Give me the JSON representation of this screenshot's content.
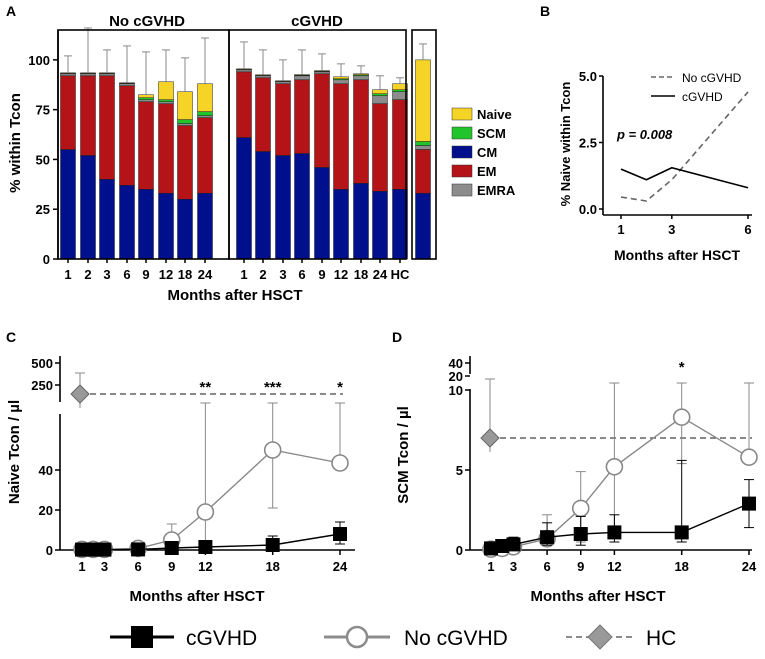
{
  "chart_data": [
    {
      "panel": "A",
      "type": "bar",
      "stacked": true,
      "ylabel": "% within Tcon",
      "xlabel": "Months after HSCT",
      "ylim": [
        0,
        115
      ],
      "yticks": [
        "0",
        "25",
        "50",
        "75",
        "100"
      ],
      "groups": [
        {
          "title": "No cGVHD",
          "categories": [
            "1",
            "2",
            "3",
            "6",
            "9",
            "12",
            "18",
            "24"
          ]
        },
        {
          "title": "cGVHD",
          "categories": [
            "1",
            "2",
            "3",
            "6",
            "9",
            "12",
            "18",
            "24"
          ]
        },
        {
          "title": "",
          "categories": [
            "HC"
          ]
        }
      ],
      "legend": [
        "Naive",
        "SCM",
        "CM",
        "EM",
        "EMRA"
      ],
      "colors": {
        "Naive": "#f5d327",
        "SCM": "#22c42c",
        "CM": "#000f8c",
        "EM": "#b41317",
        "EMRA": "#8c8c8c"
      },
      "series": [
        {
          "name": "CM",
          "values": [
            55,
            52,
            40,
            37,
            35,
            33,
            30,
            33,
            61,
            54,
            52,
            53,
            46,
            35,
            38,
            34,
            35,
            33
          ]
        },
        {
          "name": "EM",
          "values": [
            37,
            40,
            52,
            50,
            44,
            45,
            37,
            38,
            33,
            37,
            36,
            37,
            47,
            53,
            52,
            44,
            45,
            22
          ]
        },
        {
          "name": "EMRA",
          "values": [
            1,
            1,
            1,
            1,
            1,
            1,
            1,
            1,
            1,
            1,
            1,
            2,
            1,
            2,
            2,
            4,
            4,
            2
          ]
        },
        {
          "name": "SCM",
          "values": [
            0.2,
            0.2,
            0.2,
            0.2,
            1,
            1,
            2,
            2,
            0.2,
            0.2,
            0.2,
            0.3,
            0.3,
            0.5,
            0.5,
            1,
            1,
            2
          ]
        },
        {
          "name": "Naive",
          "values": [
            0.3,
            0.3,
            0.3,
            0.3,
            1.5,
            9,
            14,
            14,
            0.3,
            0.3,
            0.3,
            0.3,
            0.3,
            1,
            0.5,
            2,
            3,
            41
          ]
        }
      ],
      "error_upper": [
        102,
        116,
        105,
        107,
        104,
        105,
        101,
        111,
        109,
        105,
        100,
        105,
        103,
        98,
        97,
        92,
        91,
        108
      ]
    },
    {
      "panel": "B",
      "type": "line",
      "ylabel": "% Naive within Tcon",
      "xlabel": "Months after HSCT",
      "ylim": [
        0,
        5
      ],
      "yticks": [
        "0.0",
        "2.5",
        "5.0"
      ],
      "xticks": [
        "1",
        "3",
        "6"
      ],
      "annotation": "p = 0.008",
      "series": [
        {
          "name": "No cGVHD",
          "style": "dashed",
          "x": [
            1,
            2,
            3,
            6
          ],
          "y": [
            0.45,
            0.3,
            1.1,
            4.4
          ]
        },
        {
          "name": "cGVHD",
          "style": "solid",
          "x": [
            1,
            2,
            3,
            6
          ],
          "y": [
            1.5,
            1.1,
            1.55,
            0.8
          ]
        }
      ]
    },
    {
      "panel": "C",
      "type": "line",
      "ylabel": "Naive Tcon / µl",
      "xlabel": "Months after HSCT",
      "yticks_lower": [
        "0",
        "20",
        "40"
      ],
      "yticks_upper": [
        "250",
        "500"
      ],
      "xticks": [
        "1",
        "3",
        "6",
        "9",
        "12",
        "18",
        "24"
      ],
      "hc_reference": {
        "name": "HC",
        "value": 200
      },
      "significance": [
        {
          "x": 12,
          "label": "**"
        },
        {
          "x": 18,
          "label": "***"
        },
        {
          "x": 24,
          "label": "*"
        }
      ],
      "series": [
        {
          "name": "No cGVHD",
          "x": [
            1,
            2,
            3,
            6,
            9,
            12,
            18,
            24
          ],
          "y": [
            0.3,
            0.3,
            0.3,
            0.8,
            5,
            19,
            50,
            43.5
          ],
          "err_hi": [
            0,
            0,
            0,
            0,
            13,
            "break",
            "break",
            "break"
          ],
          "err_lo": [
            0,
            0,
            0,
            0,
            0.5,
            0.5,
            21,
            0
          ]
        },
        {
          "name": "cGVHD",
          "x": [
            1,
            2,
            3,
            6,
            9,
            12,
            18,
            24
          ],
          "y": [
            0.2,
            0.2,
            0.2,
            0.3,
            1,
            1.5,
            2.5,
            8
          ],
          "err_hi": [
            0,
            0,
            0,
            0,
            2,
            3,
            7,
            14
          ],
          "err_lo": [
            0,
            0,
            0,
            0,
            0,
            0,
            0,
            3
          ]
        }
      ]
    },
    {
      "panel": "D",
      "type": "line",
      "ylabel": "SCM Tcon / µl",
      "xlabel": "Months after HSCT",
      "yticks_lower": [
        "0",
        "5",
        "10"
      ],
      "yticks_upper": [
        "20",
        "40"
      ],
      "xticks": [
        "1",
        "3",
        "6",
        "9",
        "12",
        "18",
        "24"
      ],
      "hc_reference": {
        "name": "HC",
        "value": 7
      },
      "significance": [
        {
          "x": 18,
          "label": "*"
        }
      ],
      "series": [
        {
          "name": "No cGVHD",
          "x": [
            1,
            2,
            3,
            6,
            9,
            12,
            18,
            24
          ],
          "y": [
            0.05,
            0.1,
            0.2,
            0.7,
            2.6,
            5.2,
            8.3,
            5.8
          ],
          "err_hi": [
            0,
            0,
            0,
            2.2,
            4.9,
            "break",
            "break",
            "break"
          ],
          "err_lo": [
            0,
            0,
            0,
            0,
            0.5,
            1,
            5.4,
            0
          ]
        },
        {
          "name": "cGVHD",
          "x": [
            1,
            2,
            3,
            6,
            9,
            12,
            18,
            24
          ],
          "y": [
            0.1,
            0.25,
            0.35,
            0.8,
            1,
            1.1,
            1.1,
            2.9
          ],
          "err_hi": [
            0.4,
            0.6,
            0.8,
            1.7,
            2.1,
            2.2,
            5.6,
            4.4
          ],
          "err_lo": [
            0,
            0,
            0,
            0.3,
            0.3,
            0.5,
            0.5,
            1.4
          ]
        }
      ]
    }
  ],
  "legend_bottom": [
    "cGVHD",
    "No cGVHD",
    "HC"
  ]
}
